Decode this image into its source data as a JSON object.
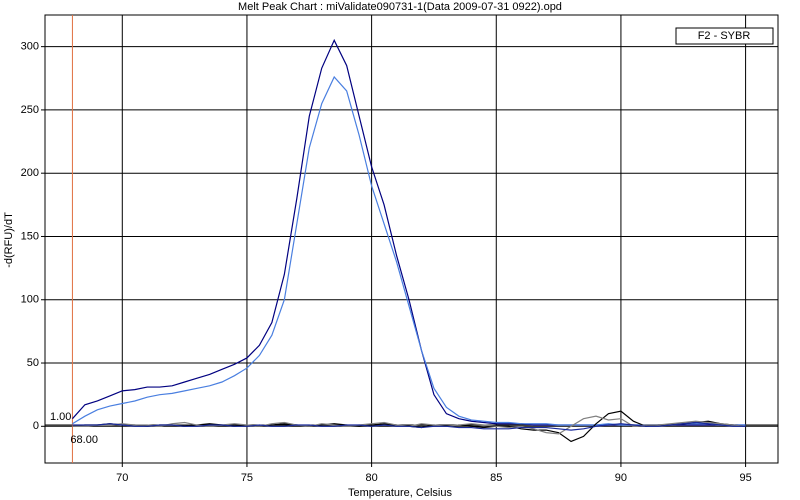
{
  "chart_data": {
    "type": "line",
    "title": "Melt Peak Chart : miValidate090731-1(Data 2009-07-31 0922).opd",
    "xlabel": "Temperature, Celsius",
    "ylabel": "-d(RFU)/dT",
    "legend": "F2 - SYBR",
    "xlim": [
      66.9,
      96.3
    ],
    "ylim": [
      -29,
      325
    ],
    "xticks": [
      70,
      75,
      80,
      85,
      90,
      95
    ],
    "yticks": [
      0,
      50,
      100,
      150,
      200,
      250,
      300
    ],
    "grid": true,
    "threshold": {
      "value": 1,
      "label": "1.00"
    },
    "start": {
      "value": 68,
      "label": "68.00"
    },
    "x": [
      68,
      68.5,
      69,
      69.5,
      70,
      70.5,
      71,
      71.5,
      72,
      72.5,
      73,
      73.5,
      74,
      74.5,
      75,
      75.5,
      76,
      76.5,
      77,
      77.5,
      78,
      78.5,
      79,
      79.5,
      80,
      80.5,
      81,
      81.5,
      82,
      82.5,
      83,
      83.5,
      84,
      84.5,
      85,
      85.5,
      86,
      86.5,
      87,
      87.5,
      88,
      88.5,
      89,
      89.5,
      90,
      90.5,
      91,
      91.5,
      92,
      92.5,
      93,
      93.5,
      94,
      94.5,
      95
    ],
    "series": [
      {
        "color": "#000080",
        "values": [
          6,
          17,
          20,
          24,
          28,
          29,
          31,
          31,
          32,
          35,
          38,
          41,
          45,
          49,
          54,
          64,
          82,
          120,
          180,
          245,
          283,
          305,
          285,
          245,
          205,
          175,
          135,
          100,
          60,
          25,
          10,
          6,
          4,
          3,
          2,
          2,
          2,
          1,
          1,
          1,
          1,
          1,
          1,
          1,
          1,
          1,
          1,
          1,
          1,
          1,
          1,
          1,
          1,
          1,
          1
        ]
      },
      {
        "color": "#4a7fe0",
        "values": [
          2,
          8,
          13,
          16,
          18,
          20,
          23,
          25,
          26,
          28,
          30,
          32,
          35,
          40,
          46,
          56,
          72,
          100,
          160,
          220,
          255,
          276,
          265,
          230,
          190,
          160,
          130,
          95,
          60,
          30,
          15,
          8,
          5,
          4,
          3,
          3,
          2,
          2,
          2,
          1,
          1,
          1,
          1,
          2,
          1,
          1,
          1,
          1,
          1,
          2,
          2,
          2,
          1,
          1,
          1
        ]
      },
      {
        "color": "#000000",
        "values": [
          0,
          1,
          1,
          2,
          1,
          1,
          0,
          1,
          1,
          0,
          1,
          2,
          1,
          0,
          1,
          0,
          1,
          2,
          1,
          0,
          1,
          2,
          1,
          0,
          1,
          2,
          1,
          0,
          -1,
          1,
          0,
          1,
          0,
          -1,
          0,
          0,
          -2,
          -3,
          -3,
          -5,
          -12,
          -8,
          2,
          10,
          12,
          4,
          0,
          1,
          1,
          2,
          3,
          4,
          2,
          1,
          0
        ]
      },
      {
        "color": "#808080",
        "values": [
          0,
          0,
          1,
          1,
          2,
          1,
          1,
          0,
          2,
          3,
          1,
          0,
          1,
          2,
          1,
          0,
          2,
          3,
          1,
          0,
          2,
          1,
          0,
          1,
          2,
          3,
          1,
          0,
          2,
          1,
          0,
          1,
          2,
          1,
          0,
          -1,
          0,
          -2,
          -5,
          -6,
          0,
          6,
          8,
          5,
          6,
          0,
          1,
          1,
          2,
          3,
          4,
          3,
          2,
          1,
          0
        ]
      },
      {
        "color": "#1a2a9a",
        "values": [
          1,
          1,
          1,
          2,
          1,
          0,
          0,
          1,
          1,
          0,
          0,
          1,
          1,
          0,
          0,
          1,
          0,
          0,
          1,
          1,
          0,
          0,
          1,
          1,
          0,
          1,
          0,
          0,
          -1,
          0,
          0,
          -1,
          -1,
          -2,
          -2,
          -2,
          -1,
          -1,
          -1,
          -2,
          -3,
          -2,
          0,
          1,
          2,
          1,
          0,
          0,
          1,
          2,
          3,
          2,
          1,
          0,
          0
        ]
      }
    ]
  }
}
